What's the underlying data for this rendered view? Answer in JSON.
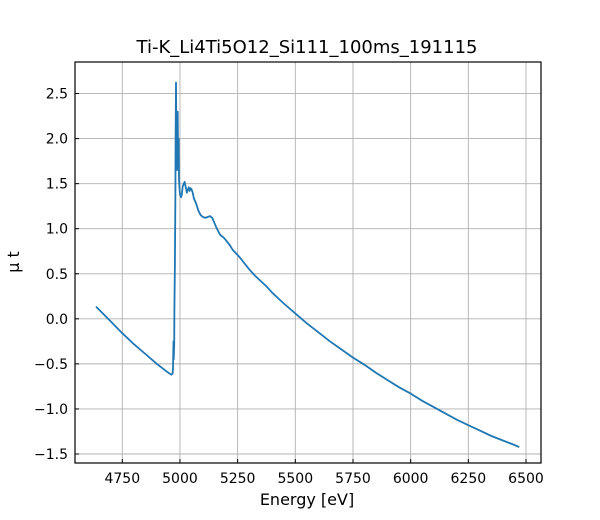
{
  "chart_data": {
    "type": "line",
    "title": "Ti-K_Li4Ti5O12_Si111_100ms_191115",
    "xlabel": "Energy [eV]",
    "ylabel": "μ t",
    "xlim": [
      4545,
      6565
    ],
    "ylim": [
      -1.6,
      2.85
    ],
    "grid": true,
    "x_ticks": [
      4750,
      5000,
      5250,
      5500,
      5750,
      6000,
      6250,
      6500
    ],
    "y_ticks": [
      -1.5,
      -1.0,
      -0.5,
      0.0,
      0.5,
      1.0,
      1.5,
      2.0,
      2.5
    ],
    "x_tick_labels": [
      "4750",
      "5000",
      "5250",
      "5500",
      "5750",
      "6000",
      "6250",
      "6500"
    ],
    "y_tick_labels": [
      "−1.5",
      "−1.0",
      "−0.5",
      "0.0",
      "0.5",
      "1.0",
      "1.5",
      "2.0",
      "2.5"
    ],
    "series": [
      {
        "color": "#1f77b4",
        "x": [
          4638,
          4700,
          4750,
          4800,
          4850,
          4900,
          4940,
          4962,
          4968,
          4970,
          4972,
          4973,
          4975,
          4976,
          4978,
          4980,
          4981,
          4983,
          4985,
          4987,
          4990,
          4992,
          4994,
          4996,
          4998,
          5000,
          5002,
          5005,
          5008,
          5012,
          5020,
          5030,
          5038,
          5042,
          5046,
          5050,
          5055,
          5060,
          5070,
          5080,
          5090,
          5100,
          5110,
          5120,
          5130,
          5140,
          5150,
          5160,
          5175,
          5190,
          5200,
          5215,
          5230,
          5245,
          5260,
          5275,
          5300,
          5325,
          5350,
          5375,
          5400,
          5425,
          5450,
          5500,
          5550,
          5600,
          5650,
          5700,
          5750,
          5800,
          5850,
          5900,
          5950,
          6000,
          6050,
          6100,
          6150,
          6200,
          6250,
          6300,
          6350,
          6400,
          6450,
          6468
        ],
        "y": [
          0.13,
          -0.03,
          -0.16,
          -0.28,
          -0.39,
          -0.5,
          -0.58,
          -0.62,
          -0.61,
          -0.55,
          -0.25,
          -0.45,
          -0.3,
          0.1,
          0.6,
          1.4,
          2.0,
          2.62,
          1.85,
          1.65,
          2.3,
          1.7,
          2.0,
          1.55,
          1.45,
          1.38,
          1.37,
          1.35,
          1.38,
          1.47,
          1.52,
          1.4,
          1.46,
          1.42,
          1.45,
          1.44,
          1.4,
          1.34,
          1.28,
          1.2,
          1.15,
          1.13,
          1.12,
          1.13,
          1.14,
          1.12,
          1.06,
          1.0,
          0.93,
          0.9,
          0.87,
          0.82,
          0.76,
          0.72,
          0.68,
          0.63,
          0.55,
          0.48,
          0.42,
          0.36,
          0.29,
          0.23,
          0.17,
          0.06,
          -0.05,
          -0.15,
          -0.25,
          -0.34,
          -0.43,
          -0.51,
          -0.6,
          -0.68,
          -0.76,
          -0.83,
          -0.91,
          -0.98,
          -1.05,
          -1.12,
          -1.18,
          -1.24,
          -1.3,
          -1.35,
          -1.4,
          -1.42
        ]
      }
    ]
  }
}
